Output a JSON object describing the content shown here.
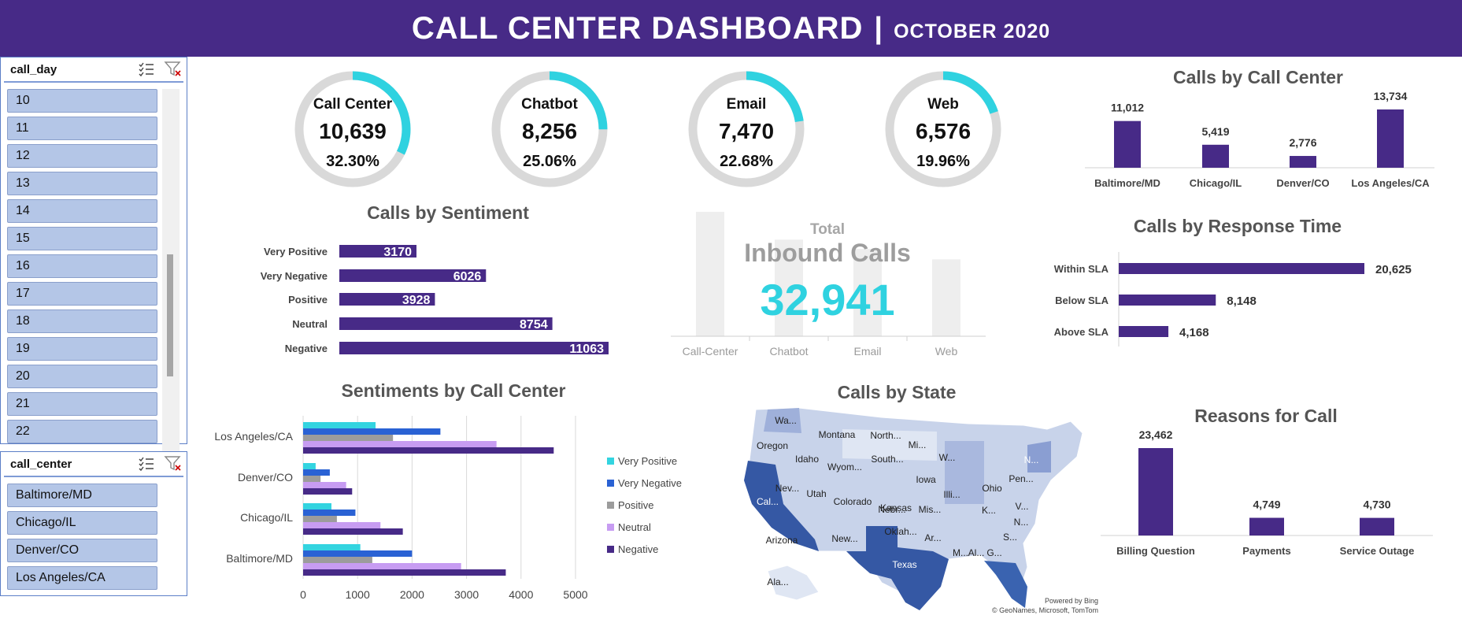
{
  "header": {
    "title": "CALL CENTER DASHBOARD",
    "separator": "|",
    "subtitle": "OCTOBER 2020"
  },
  "slicer_day": {
    "title": "call_day",
    "items": [
      "10",
      "11",
      "12",
      "13",
      "14",
      "15",
      "16",
      "17",
      "18",
      "19",
      "20",
      "21",
      "22"
    ]
  },
  "slicer_center": {
    "title": "call_center",
    "items": [
      "Baltimore/MD",
      "Chicago/IL",
      "Denver/CO",
      "Los Angeles/CA"
    ]
  },
  "colors": {
    "header": "#472a87",
    "purple": "#472a87",
    "cyan": "#2fd2e0",
    "donut_track": "#d9d9d9",
    "very_positive": "#33d4e0",
    "very_negative": "#2a62d4",
    "positive": "#9c9c9c",
    "neutral": "#c79cf2",
    "negative": "#472a87"
  },
  "kpis": [
    {
      "label": "Call Center",
      "value": "10,639",
      "pct_label": "32.30%",
      "fraction": 0.323
    },
    {
      "label": "Chatbot",
      "value": "8,256",
      "pct_label": "25.06%",
      "fraction": 0.2506
    },
    {
      "label": "Email",
      "value": "7,470",
      "pct_label": "22.68%",
      "fraction": 0.2268
    },
    {
      "label": "Web",
      "value": "6,576",
      "pct_label": "19.96%",
      "fraction": 0.1996
    }
  ],
  "total": {
    "label_small": "Total",
    "label_big": "Inbound Calls",
    "value": "32,941",
    "categories": [
      "Call-Center",
      "Chatbot",
      "Email",
      "Web"
    ],
    "values": [
      10639,
      8256,
      7470,
      6576
    ]
  },
  "chart_data": [
    {
      "id": "calls_by_call_center",
      "type": "bar",
      "title": "Calls by Call Center",
      "categories": [
        "Baltimore/MD",
        "Chicago/IL",
        "Denver/CO",
        "Los Angeles/CA"
      ],
      "values": [
        11012,
        5419,
        2776,
        13734
      ],
      "value_labels": [
        "11,012",
        "5,419",
        "2,776",
        "13,734"
      ]
    },
    {
      "id": "calls_by_sentiment",
      "type": "bar",
      "orientation": "horizontal",
      "title": "Calls by Sentiment",
      "categories": [
        "Very Positive",
        "Very Negative",
        "Positive",
        "Neutral",
        "Negative"
      ],
      "values": [
        3170,
        6026,
        3928,
        8754,
        11063
      ],
      "value_labels": [
        "3170",
        "6026",
        "3928",
        "8754",
        "11063"
      ]
    },
    {
      "id": "calls_by_response_time",
      "type": "bar",
      "orientation": "horizontal",
      "title": "Calls by Response Time",
      "categories": [
        "Within SLA",
        "Below SLA",
        "Above SLA"
      ],
      "values": [
        20625,
        8148,
        4168
      ],
      "value_labels": [
        "20,625",
        "8,148",
        "4,168"
      ]
    },
    {
      "id": "sentiments_by_call_center",
      "type": "bar",
      "orientation": "horizontal",
      "title": "Sentiments by Call Center",
      "categories": [
        "Los Angeles/CA",
        "Denver/CO",
        "Chicago/IL",
        "Baltimore/MD"
      ],
      "xlim": [
        0,
        5000
      ],
      "xticks": [
        "0",
        "1000",
        "2000",
        "3000",
        "4000",
        "5000"
      ],
      "legend_position": "right",
      "series": [
        {
          "name": "Very Positive",
          "values": [
            1330,
            230,
            520,
            1050
          ]
        },
        {
          "name": "Very Negative",
          "values": [
            2520,
            490,
            960,
            2000
          ]
        },
        {
          "name": "Positive",
          "values": [
            1650,
            320,
            620,
            1270
          ]
        },
        {
          "name": "Neutral",
          "values": [
            3550,
            790,
            1420,
            2900
          ]
        },
        {
          "name": "Negative",
          "values": [
            4600,
            900,
            1830,
            3720
          ]
        }
      ]
    },
    {
      "id": "reasons_for_call",
      "type": "bar",
      "title": "Reasons for Call",
      "categories": [
        "Billing Question",
        "Payments",
        "Service Outage"
      ],
      "values": [
        23462,
        4749,
        4730
      ],
      "value_labels": [
        "23,462",
        "4,749",
        "4,730"
      ]
    }
  ],
  "map": {
    "title": "Calls by State",
    "state_labels": [
      "Wa...",
      "Montana",
      "North...",
      "Oregon",
      "Idaho",
      "Wyom...",
      "South...",
      "Mi...",
      "W...",
      "N...",
      "Nev...",
      "Utah",
      "Colorado",
      "Nebr...",
      "Iowa",
      "Illi...",
      "Ohio",
      "Pen...",
      "Cal...",
      "Kansas",
      "Mis...",
      "K...",
      "V...",
      "Arizona",
      "New...",
      "Oklah...",
      "Ar...",
      "Te...",
      "N...",
      "Texas",
      "M...",
      "Al...",
      "G...",
      "S...",
      "Ala...",
      "M..."
    ],
    "credit_1": "Powered by Bing",
    "credit_2": "© GeoNames, Microsoft, TomTom"
  }
}
